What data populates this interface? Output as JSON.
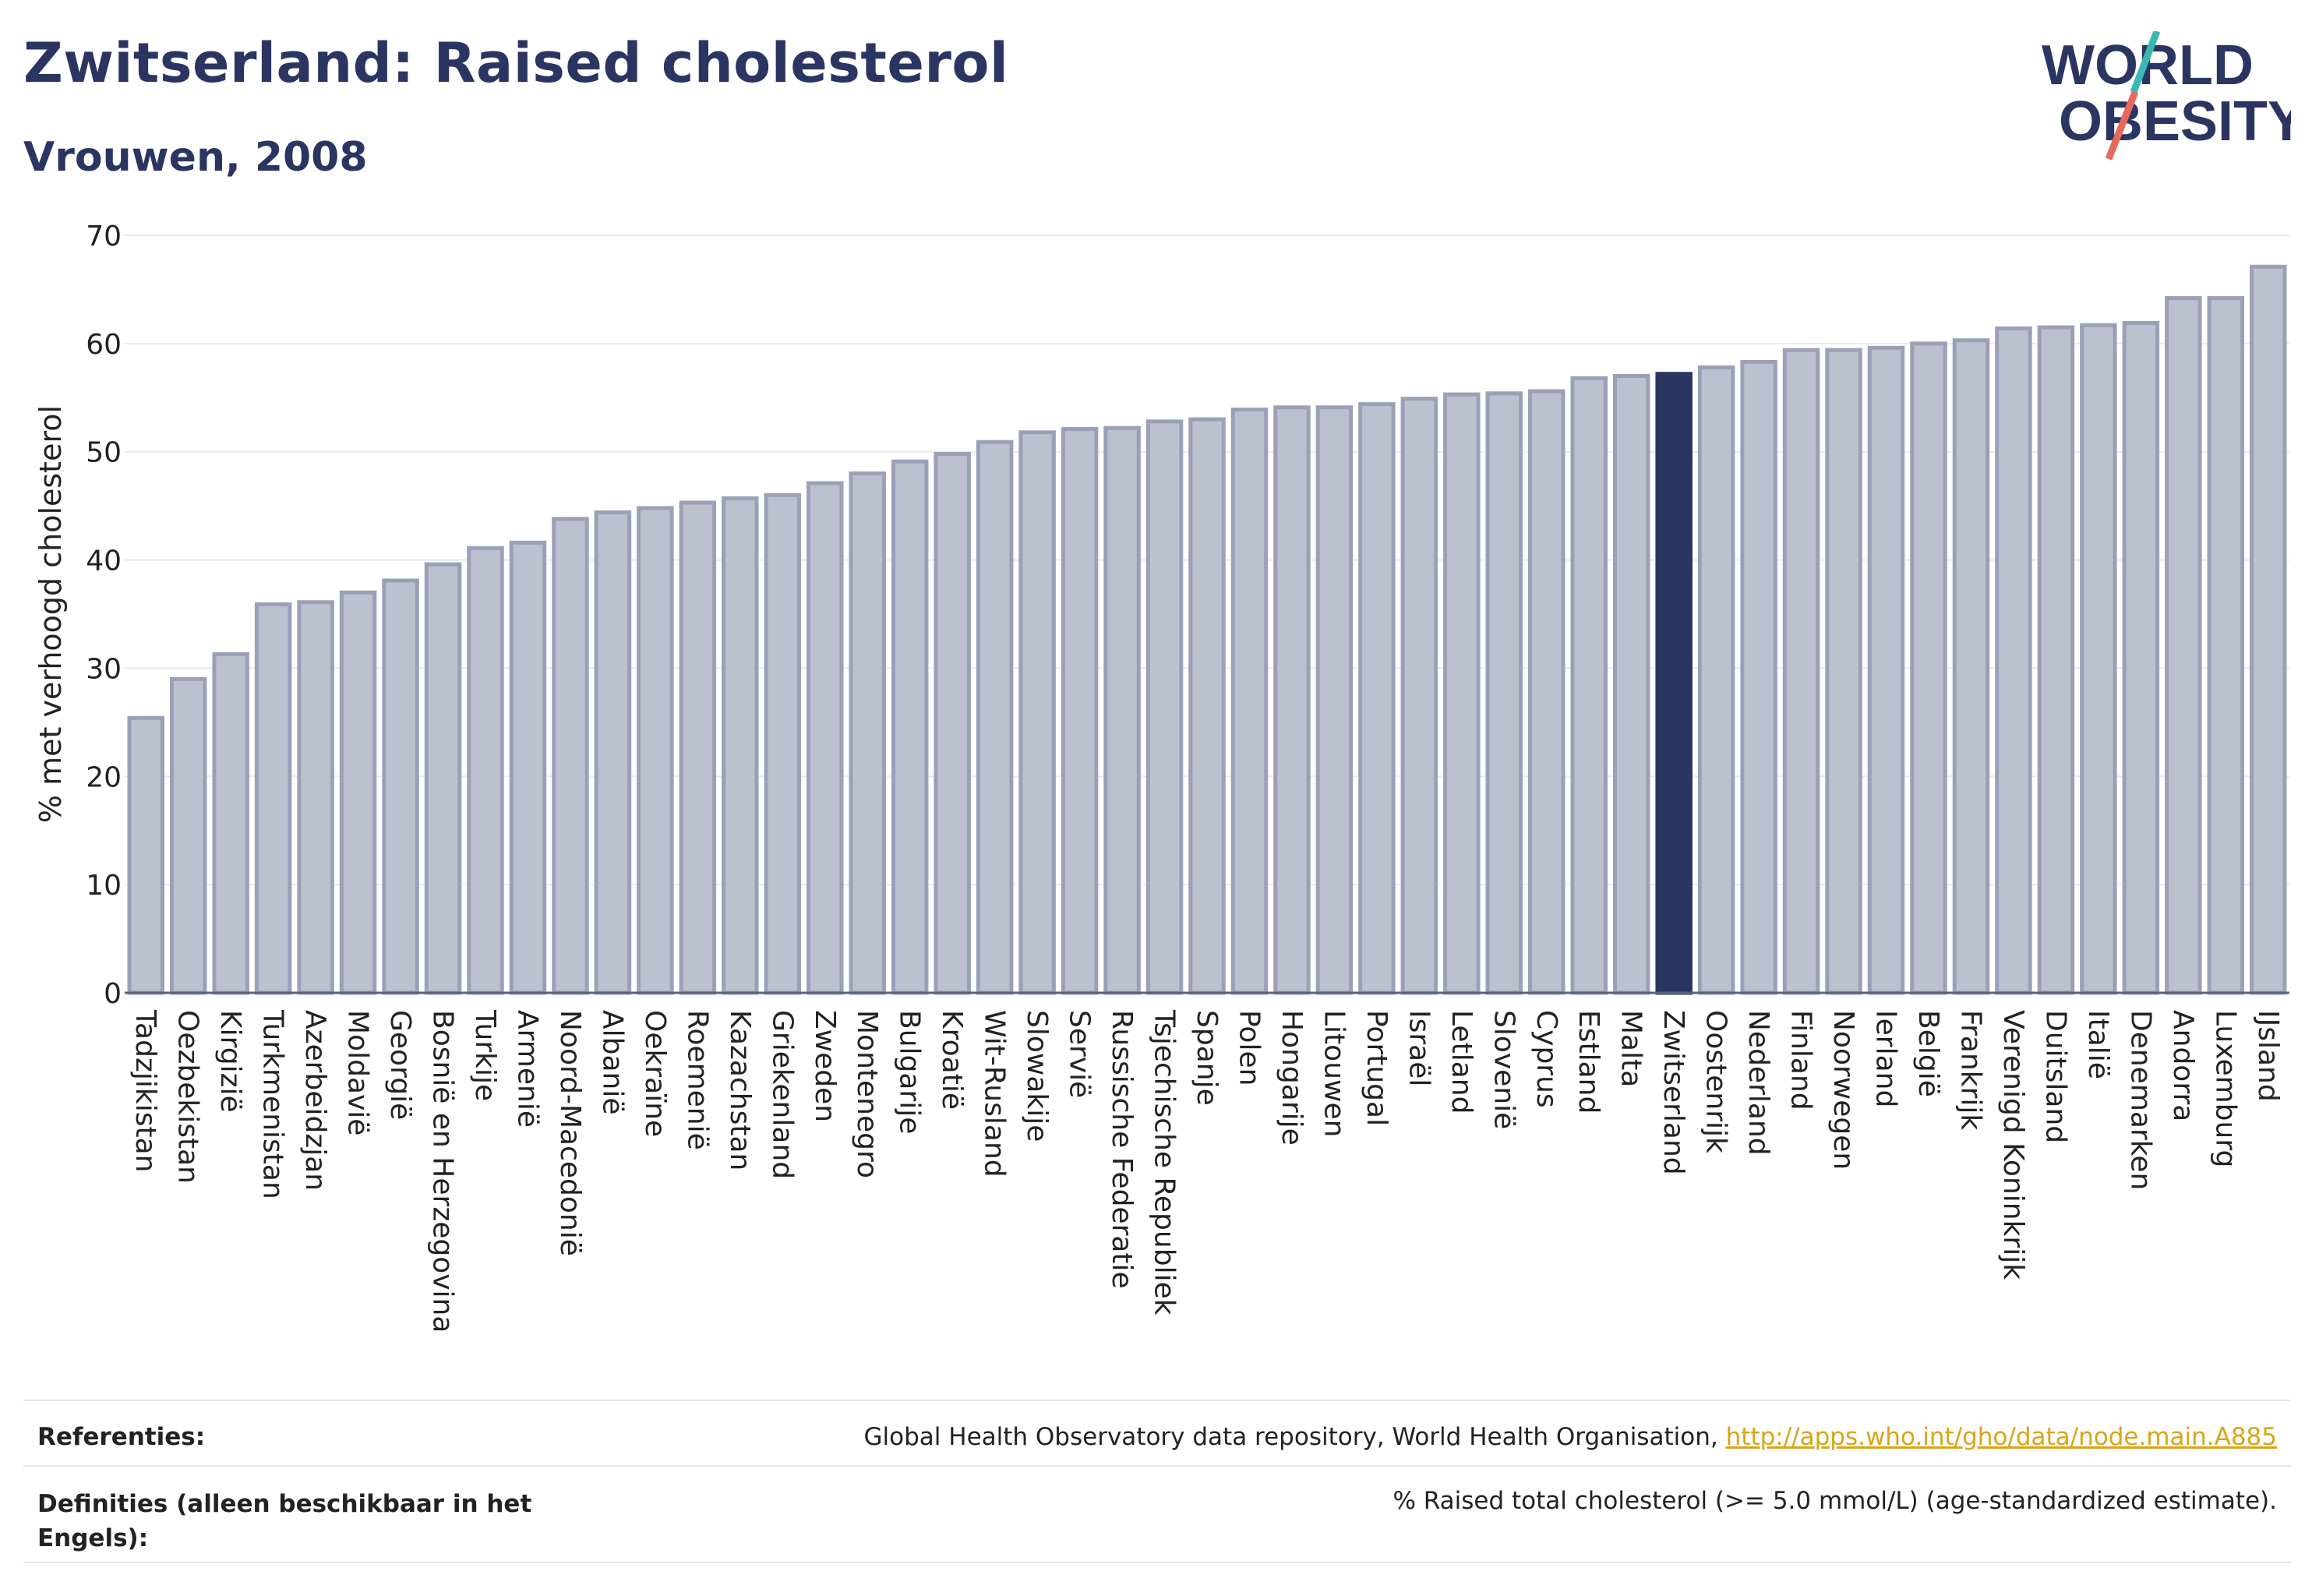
{
  "header": {
    "title": "Zwitserland: Raised cholesterol",
    "subtitle": "Vrouwen, 2008"
  },
  "logo": {
    "line1": "WORLD",
    "line2": "OBESITY"
  },
  "colors": {
    "bar": "#bcc0cf",
    "bar_border": "#9aa0b6",
    "highlight": "#2a3561",
    "grid": "#e8e8ee"
  },
  "chart_data": {
    "type": "bar",
    "ylabel": "% met verhoogd cholesterol",
    "ylim": [
      0,
      70
    ],
    "yticks": [
      0,
      10,
      20,
      30,
      40,
      50,
      60,
      70
    ],
    "highlight": "Zwitserland",
    "categories": [
      "Tadzjikistan",
      "Oezbekistan",
      "Kirgizië",
      "Turkmenistan",
      "Azerbeidzjan",
      "Moldavië",
      "Georgië",
      "Bosnië en Herzegovina",
      "Turkije",
      "Armenië",
      "Noord-Macedonië",
      "Albanië",
      "Oekraïne",
      "Roemenië",
      "Kazachstan",
      "Griekenland",
      "Zweden",
      "Montenegro",
      "Bulgarije",
      "Kroatië",
      "Wit-Rusland",
      "Slowakije",
      "Servië",
      "Russische Federatie",
      "Tsjechische Republiek",
      "Spanje",
      "Polen",
      "Hongarije",
      "Litouwen",
      "Portugal",
      "Israël",
      "Letland",
      "Slovenië",
      "Cyprus",
      "Estland",
      "Malta",
      "Zwitserland",
      "Oostenrijk",
      "Nederland",
      "Finland",
      "Noorwegen",
      "Ierland",
      "België",
      "Frankrijk",
      "Verenigd Koninkrijk",
      "Duitsland",
      "Italië",
      "Denemarken",
      "Andorra",
      "Luxemburg",
      "IJsland"
    ],
    "values": [
      25.4,
      29.0,
      31.3,
      35.9,
      36.1,
      37.0,
      38.1,
      39.6,
      41.1,
      41.6,
      43.8,
      44.4,
      44.8,
      45.3,
      45.7,
      46.0,
      47.1,
      48.0,
      49.1,
      49.8,
      50.9,
      51.8,
      52.1,
      52.2,
      52.8,
      53.0,
      53.9,
      54.1,
      54.1,
      54.4,
      54.9,
      55.3,
      55.4,
      55.6,
      56.8,
      57.0,
      57.2,
      57.8,
      58.3,
      59.4,
      59.4,
      59.6,
      60.0,
      60.3,
      61.4,
      61.5,
      61.7,
      61.9,
      64.2,
      64.2,
      67.1
    ]
  },
  "footer": {
    "references_label": "Referenties:",
    "references_text": "Global Health Observatory data repository, World Health Organisation, ",
    "references_link": "http://apps.who.int/gho/data/node.main.A885",
    "definitions_label": "Definities (alleen beschikbaar in het Engels):",
    "definitions_text": "% Raised total cholesterol (>= 5.0 mmol/L) (age-standardized estimate)."
  }
}
